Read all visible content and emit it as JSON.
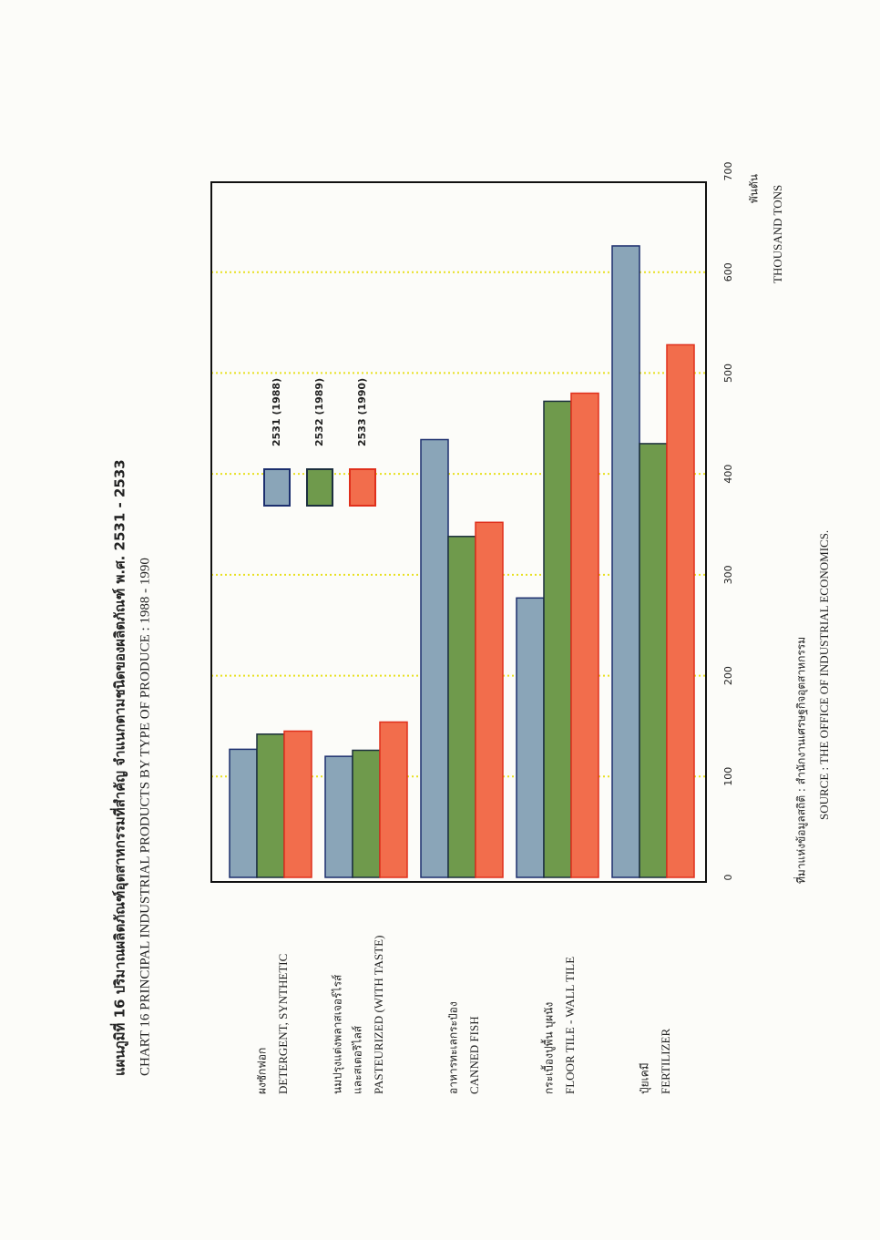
{
  "chart_data": {
    "type": "bar",
    "orientation": "horizontal",
    "title": "แผนภูมิที่ 16 ปริมาณผลิตภัณฑ์อุตสาหกรรมที่สำคัญ จำแนกตามชนิดของผลิตภัณฑ์ พ.ศ. 2531 - 2533",
    "subtitle": "CHART 16 PRINCIPAL INDUSTRIAL PRODUCTS BY TYPE OF PRODUCE : 1988 - 1990",
    "categories": [
      "DETERGENT, SYNTHETIC",
      "PASTEURIZED (WITH TASTE)",
      "CANNED FISH",
      "FLOOR TILE - WALL TILE",
      "FERTILIZER"
    ],
    "categories_th": [
      [
        "ผงซักฟอก"
      ],
      [
        "นมปรุงแต่งพลาสเจอร์ไรส์",
        "และสเตอริไลส์"
      ],
      [
        "อาหารทะเลกระป๋อง"
      ],
      [
        "กระเบื้องปูพื้น บุผนัง"
      ],
      [
        "ปุ๋ยเคมี"
      ]
    ],
    "series": [
      {
        "name": "2531 (1988)",
        "color": "#8aa5b8",
        "edge": "#1c2f6e",
        "values": [
          127,
          120,
          434,
          277,
          626
        ]
      },
      {
        "name": "2532 (1989)",
        "color": "#6f9a4c",
        "edge": "#1c2f3e",
        "values": [
          142,
          126,
          338,
          472,
          430
        ]
      },
      {
        "name": "2533 (1990)",
        "color": "#f26d4c",
        "edge": "#e0301c",
        "values": [
          145,
          154,
          352,
          480,
          528
        ]
      }
    ],
    "xlim": [
      0,
      700
    ],
    "xticks": [
      0,
      100,
      200,
      300,
      400,
      500,
      600,
      700
    ],
    "x_unit_th": "พันตัน",
    "x_unit": "THOUSAND TONS",
    "grid": true,
    "grid_color": "#e8e020",
    "source_th": "ที่มาแห่งข้อมูลสถิติ  :  สำนักงานเศรษฐกิจอุตสาหกรรม",
    "source": "SOURCE  :  THE OFFICE OF INDUSTRIAL ECONOMICS."
  }
}
